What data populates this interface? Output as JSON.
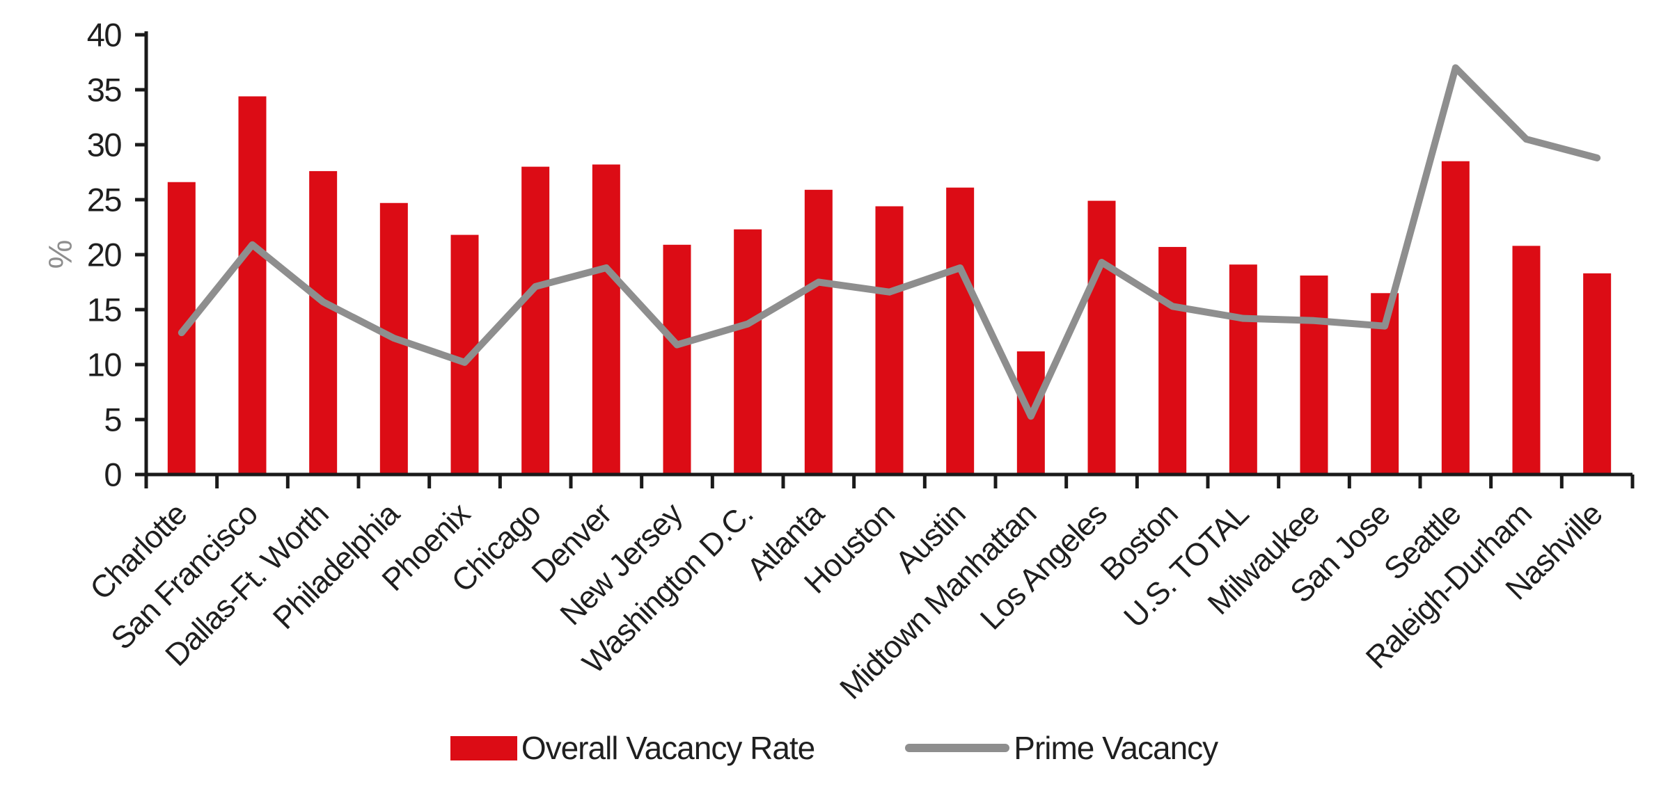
{
  "chart_data": {
    "type": "bar+line",
    "title": "",
    "ylabel": "%",
    "xlabel": "",
    "ylim": [
      0,
      40
    ],
    "yticks": [
      0,
      5,
      10,
      15,
      20,
      25,
      30,
      35,
      40
    ],
    "grid": false,
    "legend_position": "bottom-center",
    "x_label_rotation_deg": -45,
    "categories": [
      "Charlotte",
      "San Francisco",
      "Dallas-Ft. Worth",
      "Philadelphia",
      "Phoenix",
      "Chicago",
      "Denver",
      "New Jersey",
      "Washington D.C.",
      "Atlanta",
      "Houston",
      "Austin",
      "Midtown Manhattan",
      "Los Angeles",
      "Boston",
      "U.S. TOTAL",
      "Milwaukee",
      "San Jose",
      "Seattle",
      "Raleigh-Durham",
      "Nashville"
    ],
    "series": [
      {
        "name": "Overall Vacancy Rate",
        "type": "bar",
        "color": "#DC0C15",
        "values": [
          26.6,
          34.4,
          27.6,
          24.7,
          21.8,
          28.0,
          28.2,
          20.9,
          22.3,
          25.9,
          24.4,
          26.1,
          11.2,
          24.9,
          20.7,
          19.1,
          18.1,
          16.5,
          28.5,
          20.8,
          18.3
        ]
      },
      {
        "name": "Prime Vacancy",
        "type": "line",
        "color": "#8E8E8E",
        "values": [
          12.9,
          20.9,
          15.7,
          12.4,
          10.2,
          17.1,
          18.8,
          11.8,
          13.7,
          17.5,
          16.6,
          18.8,
          5.3,
          19.3,
          15.3,
          14.2,
          14.0,
          13.5,
          37.0,
          30.5,
          28.8
        ]
      }
    ]
  },
  "colors": {
    "bar_red": "#DC0C15",
    "line_gray": "#8E8E8E",
    "axis_black": "#1A1A1A",
    "tick_label": "#1F1F1F",
    "background": "#FFFFFF"
  }
}
